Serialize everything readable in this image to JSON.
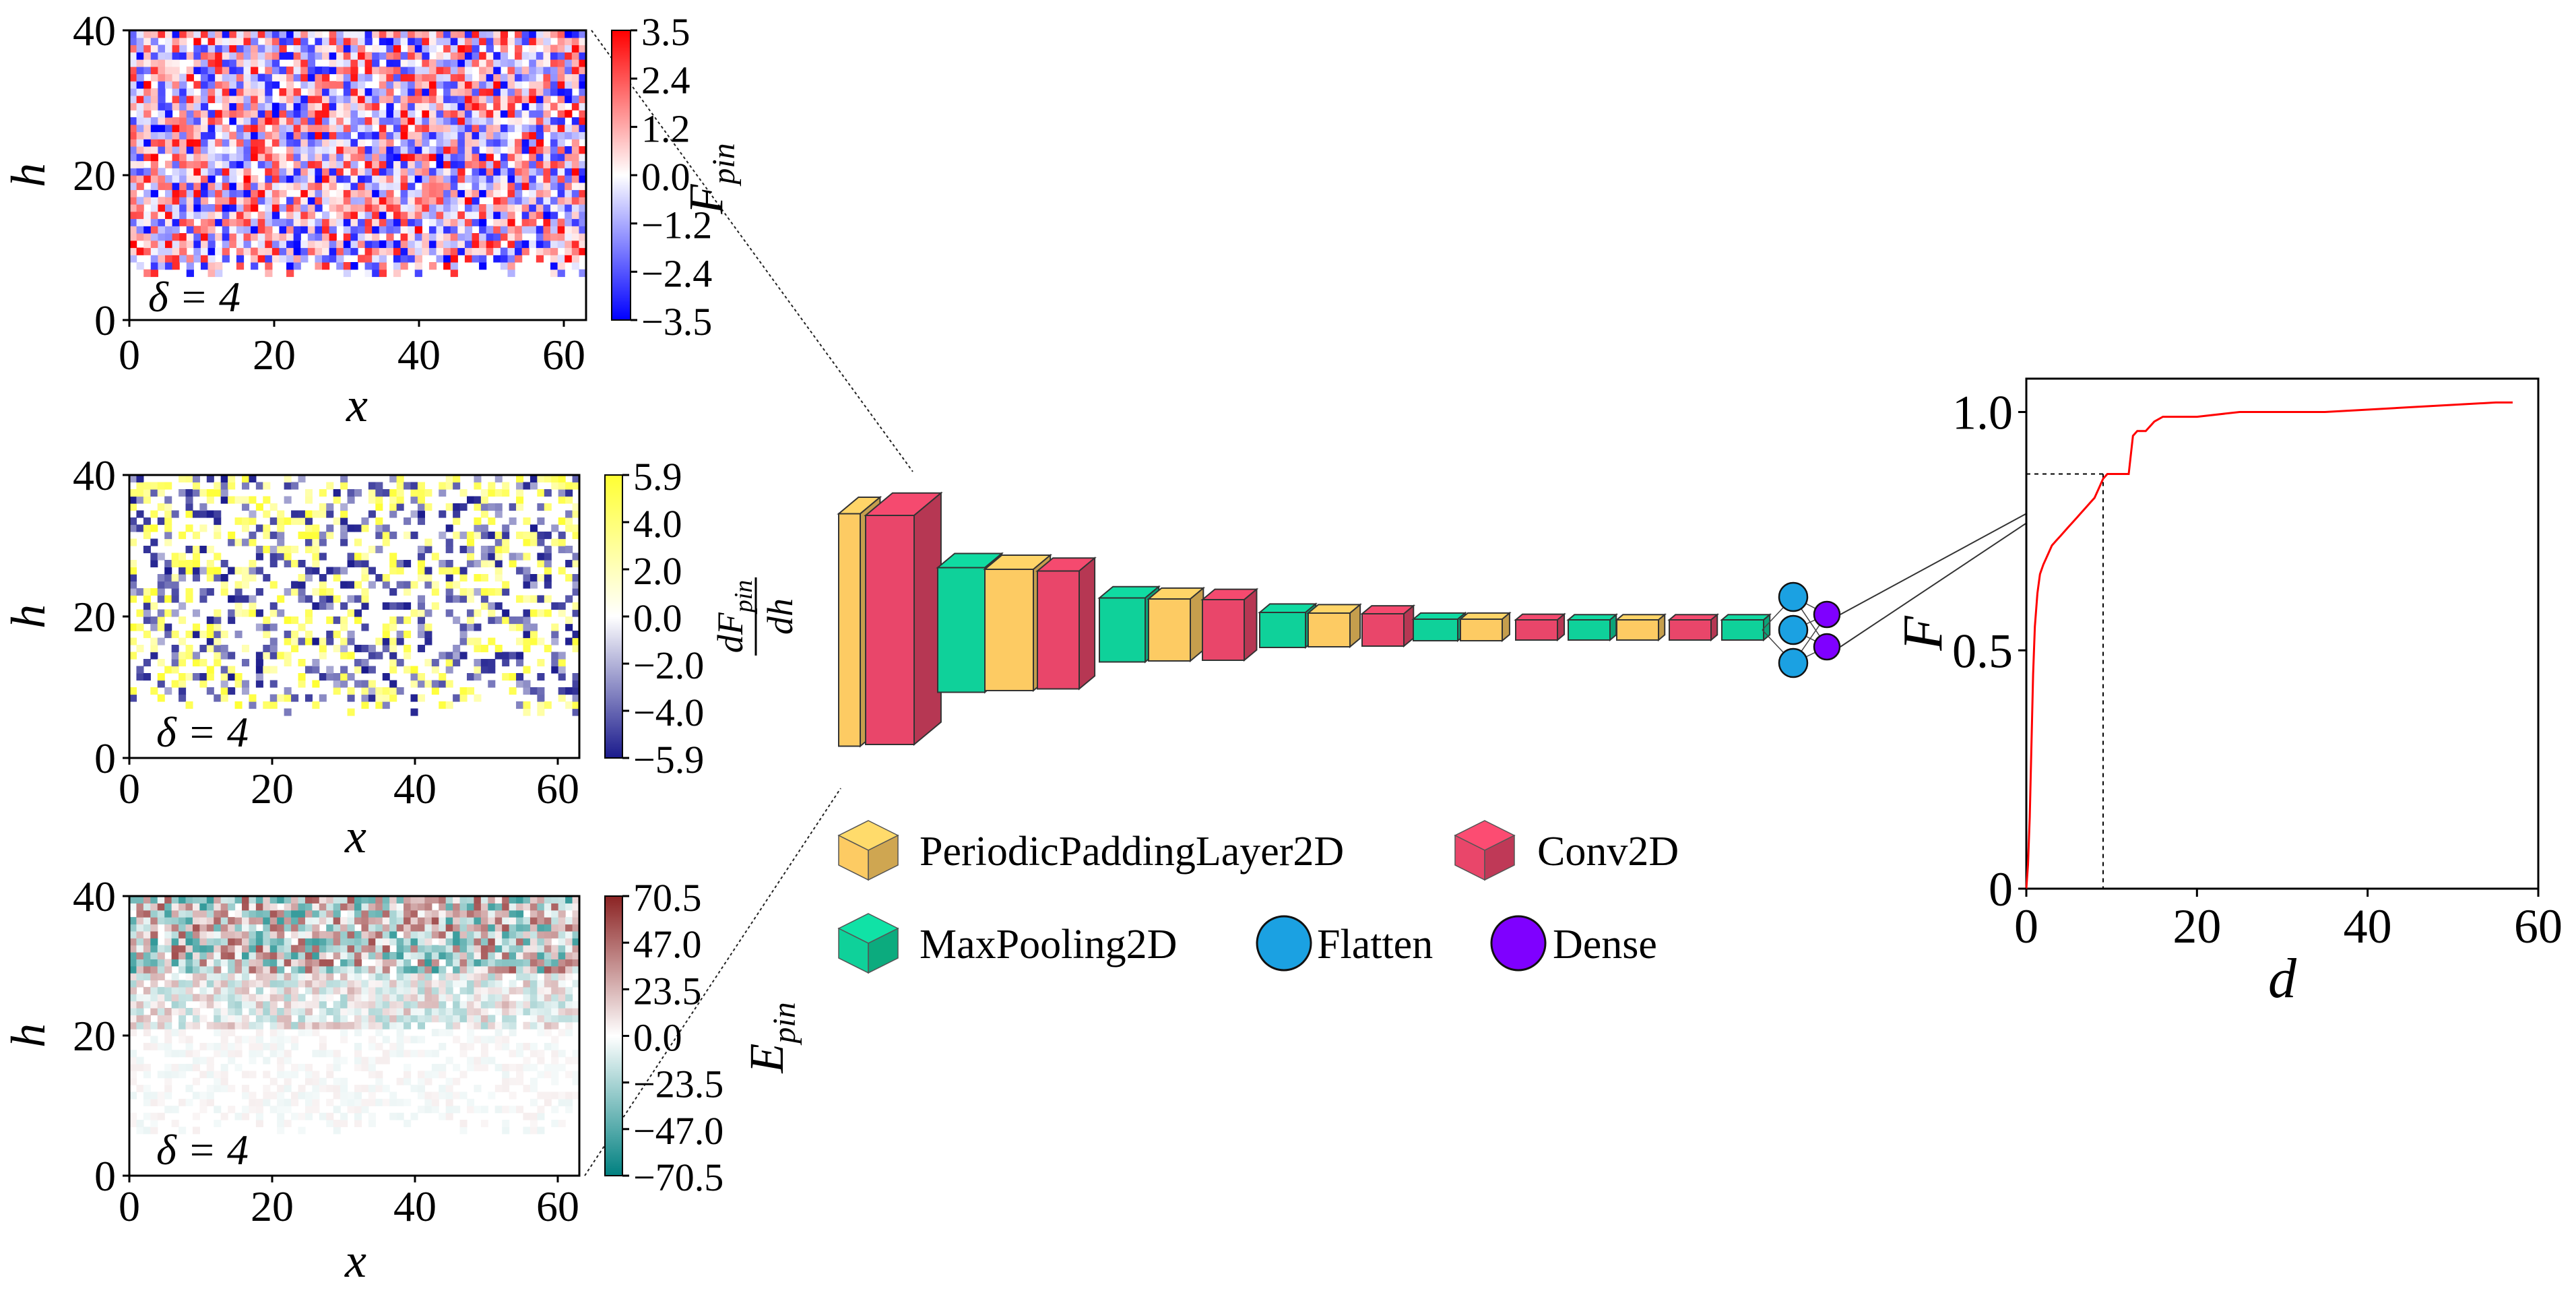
{
  "figure": {
    "panels": [
      {
        "id": "fpin",
        "ylabel": "h",
        "xlabel": "x",
        "annotation": "δ = 4",
        "x_ticks": [
          "0",
          "20",
          "40",
          "60"
        ],
        "y_ticks": [
          "0",
          "20",
          "40"
        ],
        "colorbar": {
          "label_main": "F",
          "label_sub": "pin",
          "ticks": [
            "3.5",
            "2.4",
            "1.2",
            "0.0",
            "−1.2",
            "−2.4",
            "−3.5"
          ],
          "colors": [
            "#ff0000",
            "#ffffff",
            "#0000ff"
          ]
        }
      },
      {
        "id": "dfpin",
        "ylabel": "h",
        "xlabel": "x",
        "annotation": "δ = 4",
        "x_ticks": [
          "0",
          "20",
          "40",
          "60"
        ],
        "y_ticks": [
          "0",
          "20",
          "40"
        ],
        "colorbar": {
          "label_numerator": "dF",
          "label_numerator_sub": "pin",
          "label_denominator": "dh",
          "ticks": [
            "5.9",
            "4.0",
            "2.0",
            "0.0",
            "−2.0",
            "−4.0",
            "−5.9"
          ],
          "colors": [
            "#ffff33",
            "#ffffff",
            "#1a1a8c"
          ]
        }
      },
      {
        "id": "epin",
        "ylabel": "h",
        "xlabel": "x",
        "annotation": "δ = 4",
        "x_ticks": [
          "0",
          "20",
          "40",
          "60"
        ],
        "y_ticks": [
          "0",
          "20",
          "40"
        ],
        "colorbar": {
          "label_main": "E",
          "label_sub": "pin",
          "ticks": [
            "70.5",
            "47.0",
            "23.5",
            "0.0",
            "−23.5",
            "−47.0",
            "−70.5"
          ],
          "colors": [
            "#8b2323",
            "#ffffff",
            "#008080"
          ]
        }
      }
    ],
    "network": {
      "layers": [
        {
          "type": "PeriodicPaddingLayer2D"
        },
        {
          "type": "Conv2D"
        },
        {
          "type": "MaxPooling2D"
        },
        {
          "type": "PeriodicPaddingLayer2D"
        },
        {
          "type": "Conv2D"
        },
        {
          "type": "MaxPooling2D"
        },
        {
          "type": "PeriodicPaddingLayer2D"
        },
        {
          "type": "Conv2D"
        },
        {
          "type": "MaxPooling2D"
        },
        {
          "type": "PeriodicPaddingLayer2D"
        },
        {
          "type": "Conv2D"
        },
        {
          "type": "MaxPooling2D"
        },
        {
          "type": "PeriodicPaddingLayer2D"
        },
        {
          "type": "Conv2D"
        },
        {
          "type": "MaxPooling2D"
        },
        {
          "type": "PeriodicPaddingLayer2D"
        },
        {
          "type": "Conv2D"
        },
        {
          "type": "MaxPooling2D"
        },
        {
          "type": "Flatten"
        },
        {
          "type": "Dense"
        }
      ],
      "flatten_nodes": 3,
      "dense_nodes": 2
    },
    "legend": [
      {
        "label": "PeriodicPaddingLayer2D",
        "shape": "cube",
        "color": "#fdcb63"
      },
      {
        "label": "Conv2D",
        "shape": "cube",
        "color": "#e9466a"
      },
      {
        "label": "MaxPooling2D",
        "shape": "cube",
        "color": "#0fd19a"
      },
      {
        "label": "Flatten",
        "shape": "circle",
        "color": "#1ba1e2"
      },
      {
        "label": "Dense",
        "shape": "circle",
        "color": "#7f00ff"
      }
    ],
    "colors": {
      "padding": "#fdcb63",
      "conv": "#e9466a",
      "pool": "#0fd19a",
      "flatten": "#1ba1e2",
      "dense": "#7f00ff",
      "curve": "#ff0000"
    }
  },
  "chart_data": {
    "type": "line",
    "xlabel": "d",
    "ylabel": "F",
    "xlim": [
      0,
      60
    ],
    "ylim": [
      0,
      1.07
    ],
    "x_ticks": [
      "0",
      "20",
      "40",
      "60"
    ],
    "y_ticks": [
      "0",
      "0.5",
      "1.0"
    ],
    "series": [
      {
        "color": "#ff0000",
        "x": [
          0,
          0.2,
          0.4,
          0.6,
          0.8,
          1.0,
          1.3,
          1.6,
          2.0,
          2.5,
          3.0,
          3.5,
          4.0,
          4.5,
          5.0,
          5.5,
          6.0,
          6.5,
          7.0,
          7.5,
          8.0,
          8.5,
          9.0,
          9.5,
          10,
          11,
          12,
          12.5,
          13,
          14,
          15,
          16,
          18,
          20,
          25,
          30,
          35,
          40,
          45,
          50,
          55,
          57
        ],
        "y": [
          0,
          0.05,
          0.15,
          0.3,
          0.45,
          0.55,
          0.62,
          0.66,
          0.68,
          0.7,
          0.72,
          0.73,
          0.74,
          0.75,
          0.76,
          0.77,
          0.78,
          0.79,
          0.8,
          0.81,
          0.82,
          0.84,
          0.86,
          0.87,
          0.87,
          0.87,
          0.87,
          0.95,
          0.96,
          0.96,
          0.98,
          0.99,
          0.99,
          0.99,
          1.0,
          1.0,
          1.0,
          1.005,
          1.01,
          1.015,
          1.02,
          1.02
        ]
      }
    ],
    "annotations": [
      {
        "x": 9,
        "y": 0.87,
        "style": "dotted"
      }
    ]
  }
}
